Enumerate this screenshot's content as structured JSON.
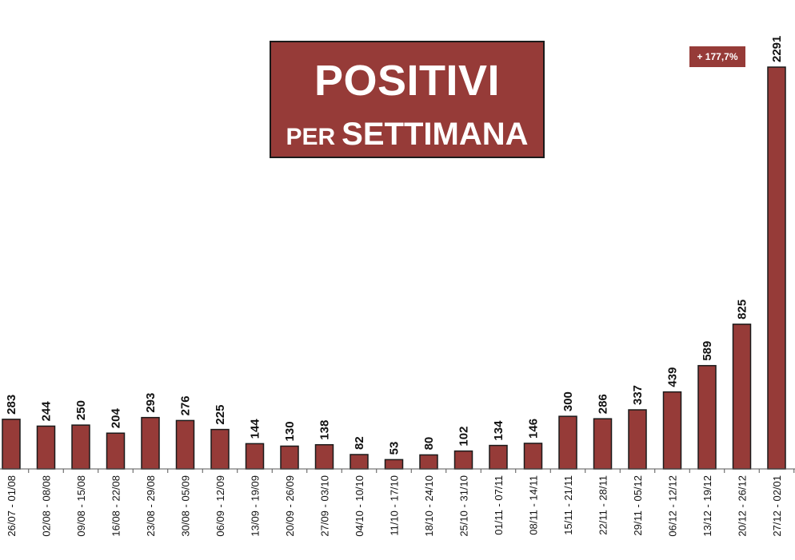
{
  "colors": {
    "bar": "#963b38",
    "bar_stroke": "#1a1a1a",
    "axis": "#555555",
    "text": "#111111"
  },
  "chart_data": {
    "type": "bar",
    "title": "POSITIVI",
    "subtitle_prefix": "PER",
    "subtitle": "SETTIMANA",
    "annotation": "+ 177,7%",
    "categories": [
      "26/07 - 01/08",
      "02/08 - 08/08",
      "09/08 - 15/08",
      "16/08 - 22/08",
      "23/08 - 29/08",
      "30/08 - 05/09",
      "06/09 - 12/09",
      "13/09 - 19/09",
      "20/09 - 26/09",
      "27/09 - 03/10",
      "04/10 - 10/10",
      "11/10 - 17/10",
      "18/10 - 24/10",
      "25/10 - 31/10",
      "01/11 - 07/11",
      "08/11 - 14/11",
      "15/11 - 21/11",
      "22/11 - 28/11",
      "29/11 - 05/12",
      "06/12 - 12/12",
      "13/12 - 19/12",
      "20/12 - 26/12",
      "27/12 - 02/01"
    ],
    "values": [
      283,
      244,
      250,
      204,
      293,
      276,
      225,
      144,
      130,
      138,
      82,
      53,
      80,
      102,
      134,
      146,
      300,
      286,
      337,
      439,
      589,
      825,
      2291
    ],
    "ylim": [
      0,
      2291
    ],
    "grid": false,
    "legend": "none"
  }
}
